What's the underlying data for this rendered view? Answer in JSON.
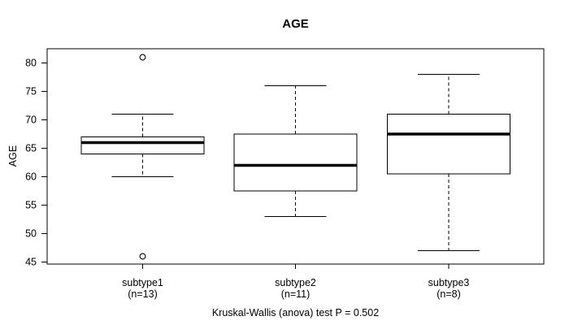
{
  "page": {
    "background": "#ffffff",
    "foreground": "#000000"
  },
  "chart_data": {
    "type": "boxplot",
    "title": "AGE",
    "ylabel": "AGE",
    "xlabel": "",
    "caption": "Kruskal-Wallis (anova) test P = 0.502",
    "grid": false,
    "legend": "none",
    "ylim": [
      44.7,
      82.5
    ],
    "yticks": [
      45,
      50,
      55,
      60,
      65,
      70,
      75,
      80
    ],
    "colors": {
      "line": "#000000",
      "box_fill": "#ffffff",
      "background": "#ffffff"
    },
    "groups": [
      {
        "label": "subtype1",
        "sublabel": "(n=13)",
        "n": 13,
        "whisker_low": 60,
        "q1": 64,
        "median": 66,
        "q3": 67,
        "whisker_high": 71,
        "outliers": [
          81,
          46
        ]
      },
      {
        "label": "subtype2",
        "sublabel": "(n=11)",
        "n": 11,
        "whisker_low": 53,
        "q1": 57.5,
        "median": 62,
        "q3": 67.5,
        "whisker_high": 76,
        "outliers": []
      },
      {
        "label": "subtype3",
        "sublabel": "(n=8)",
        "n": 8,
        "whisker_low": 47,
        "q1": 60.5,
        "median": 67.5,
        "q3": 71,
        "whisker_high": 78,
        "outliers": []
      }
    ]
  }
}
